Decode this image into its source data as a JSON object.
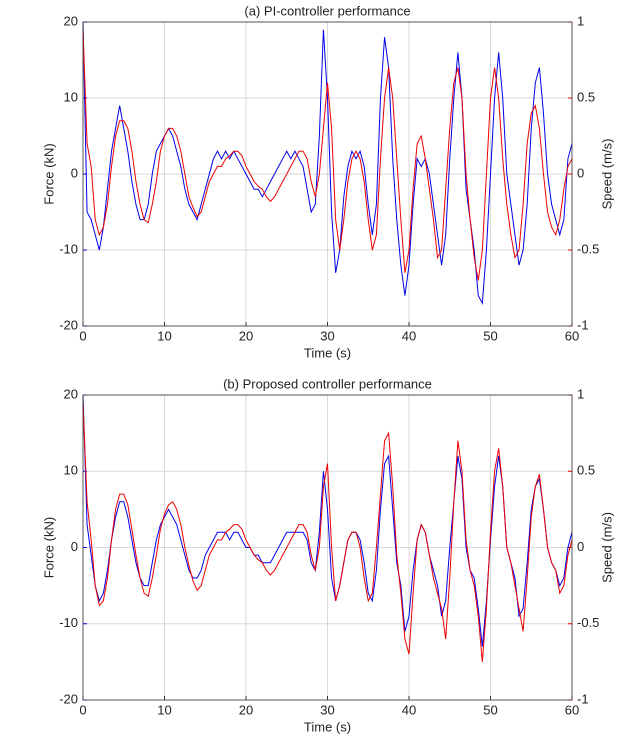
{
  "chart_data": [
    {
      "type": "line",
      "title": "(a) PI-controller performance",
      "xlabel": "Time (s)",
      "ylabel": "Force (kN)",
      "y2label": "Speed (m/s)",
      "xlim": [
        0,
        60
      ],
      "xticks": [
        0,
        10,
        20,
        30,
        40,
        50,
        60
      ],
      "ylim": [
        -20,
        20
      ],
      "yticks": [
        -20,
        -10,
        0,
        10,
        20
      ],
      "y2lim": [
        -1,
        1
      ],
      "y2ticks": [
        -1,
        -0.5,
        0,
        0.5,
        1
      ],
      "grid": true,
      "x": [
        0,
        0.5,
        1,
        1.5,
        2,
        2.5,
        3,
        3.5,
        4,
        4.5,
        5,
        5.5,
        6,
        6.5,
        7,
        7.5,
        8,
        8.5,
        9,
        9.5,
        10,
        10.5,
        11,
        11.5,
        12,
        12.5,
        13,
        13.5,
        14,
        14.5,
        15,
        15.5,
        16,
        16.5,
        17,
        17.5,
        18,
        18.5,
        19,
        19.5,
        20,
        20.5,
        21,
        21.5,
        22,
        22.5,
        23,
        23.5,
        24,
        24.5,
        25,
        25.5,
        26,
        26.5,
        27,
        27.5,
        28,
        28.5,
        29,
        29.5,
        30,
        30.5,
        31,
        31.5,
        32,
        32.5,
        33,
        33.5,
        34,
        34.5,
        35,
        35.5,
        36,
        36.5,
        37,
        37.5,
        38,
        38.5,
        39,
        39.5,
        40,
        40.5,
        41,
        41.5,
        42,
        42.5,
        43,
        43.5,
        44,
        44.5,
        45,
        45.5,
        46,
        46.5,
        47,
        47.5,
        48,
        48.5,
        49,
        49.5,
        50,
        50.5,
        51,
        51.5,
        52,
        52.5,
        53,
        53.5,
        54,
        54.5,
        55,
        55.5,
        56,
        56.5,
        57,
        57.5,
        58,
        58.5,
        59,
        59.5,
        60
      ],
      "series": [
        {
          "color": "#0000ee",
          "axis": "y",
          "values": [
            20,
            -5,
            -6,
            -8,
            -10,
            -7,
            -2,
            3,
            6,
            9,
            6,
            3,
            -1,
            -4,
            -6,
            -6,
            -4,
            0,
            3,
            4,
            5,
            6,
            5,
            3,
            1,
            -2,
            -4,
            -5,
            -6,
            -4,
            -2,
            0,
            2,
            3,
            2,
            3,
            2,
            3,
            2,
            1,
            0,
            -1,
            -2,
            -2,
            -3,
            -2,
            -1,
            0,
            1,
            2,
            3,
            2,
            3,
            2,
            1,
            -2,
            -5,
            -4,
            5,
            19,
            10,
            -5,
            -13,
            -10,
            -3,
            1,
            3,
            2,
            3,
            1,
            -4,
            -8,
            -4,
            10,
            18,
            14,
            2,
            -6,
            -12,
            -16,
            -12,
            -4,
            2,
            1,
            2,
            0,
            -4,
            -8,
            -12,
            -8,
            2,
            10,
            16,
            10,
            -2,
            -6,
            -10,
            -16,
            -17,
            -10,
            0,
            10,
            16,
            10,
            0,
            -4,
            -8,
            -12,
            -10,
            -4,
            6,
            12,
            14,
            8,
            0,
            -4,
            -6,
            -8,
            -6,
            2,
            4
          ]
        },
        {
          "color": "#ee0000",
          "axis": "y2",
          "values": [
            0.95,
            0.2,
            0.05,
            -0.3,
            -0.4,
            -0.35,
            -0.2,
            0.05,
            0.25,
            0.35,
            0.35,
            0.3,
            0.15,
            -0.05,
            -0.2,
            -0.3,
            -0.32,
            -0.2,
            -0.05,
            0.15,
            0.25,
            0.3,
            0.3,
            0.25,
            0.15,
            0,
            -0.15,
            -0.22,
            -0.28,
            -0.25,
            -0.15,
            -0.05,
            0,
            0.05,
            0.05,
            0.1,
            0.12,
            0.15,
            0.15,
            0.12,
            0.05,
            0,
            -0.05,
            -0.08,
            -0.1,
            -0.15,
            -0.18,
            -0.15,
            -0.1,
            -0.05,
            0,
            0.05,
            0.1,
            0.15,
            0.15,
            0.1,
            -0.05,
            -0.15,
            0,
            0.3,
            0.6,
            0.3,
            -0.3,
            -0.5,
            -0.3,
            -0.05,
            0.1,
            0.15,
            0.1,
            -0.05,
            -0.3,
            -0.5,
            -0.4,
            0.1,
            0.5,
            0.7,
            0.5,
            0.1,
            -0.3,
            -0.65,
            -0.5,
            -0.1,
            0.2,
            0.25,
            0.1,
            -0.1,
            -0.3,
            -0.55,
            -0.5,
            -0.1,
            0.3,
            0.6,
            0.7,
            0.5,
            0,
            -0.3,
            -0.55,
            -0.7,
            -0.5,
            0,
            0.5,
            0.7,
            0.5,
            0.1,
            -0.2,
            -0.4,
            -0.55,
            -0.5,
            -0.2,
            0.2,
            0.4,
            0.45,
            0.3,
            0,
            -0.25,
            -0.35,
            -0.4,
            -0.3,
            -0.1,
            0.05,
            0.1
          ]
        }
      ]
    },
    {
      "type": "line",
      "title": "(b) Proposed controller performance",
      "xlabel": "Time (s)",
      "ylabel": "Force (kN)",
      "y2label": "Speed (m/s)",
      "xlim": [
        0,
        60
      ],
      "xticks": [
        0,
        10,
        20,
        30,
        40,
        50,
        60
      ],
      "ylim": [
        -20,
        20
      ],
      "yticks": [
        -20,
        -10,
        0,
        10,
        20
      ],
      "y2lim": [
        -1,
        1
      ],
      "y2ticks": [
        -1,
        -0.5,
        0,
        0.5,
        1
      ],
      "grid": true,
      "x": [
        0,
        0.5,
        1,
        1.5,
        2,
        2.5,
        3,
        3.5,
        4,
        4.5,
        5,
        5.5,
        6,
        6.5,
        7,
        7.5,
        8,
        8.5,
        9,
        9.5,
        10,
        10.5,
        11,
        11.5,
        12,
        12.5,
        13,
        13.5,
        14,
        14.5,
        15,
        15.5,
        16,
        16.5,
        17,
        17.5,
        18,
        18.5,
        19,
        19.5,
        20,
        20.5,
        21,
        21.5,
        22,
        22.5,
        23,
        23.5,
        24,
        24.5,
        25,
        25.5,
        26,
        26.5,
        27,
        27.5,
        28,
        28.5,
        29,
        29.5,
        30,
        30.5,
        31,
        31.5,
        32,
        32.5,
        33,
        33.5,
        34,
        34.5,
        35,
        35.5,
        36,
        36.5,
        37,
        37.5,
        38,
        38.5,
        39,
        39.5,
        40,
        40.5,
        41,
        41.5,
        42,
        42.5,
        43,
        43.5,
        44,
        44.5,
        45,
        45.5,
        46,
        46.5,
        47,
        47.5,
        48,
        48.5,
        49,
        49.5,
        50,
        50.5,
        51,
        51.5,
        52,
        52.5,
        53,
        53.5,
        54,
        54.5,
        55,
        55.5,
        56,
        56.5,
        57,
        57.5,
        58,
        58.5,
        59,
        59.5,
        60
      ],
      "series": [
        {
          "color": "#0000ee",
          "axis": "y",
          "values": [
            20,
            3,
            -1,
            -5,
            -7,
            -6,
            -3,
            1,
            4,
            6,
            6,
            4,
            1,
            -2,
            -4,
            -5,
            -5,
            -2,
            1,
            3,
            4,
            5,
            4,
            3,
            1,
            -1,
            -3,
            -4,
            -4,
            -3,
            -1,
            0,
            1,
            2,
            2,
            2,
            1,
            2,
            2,
            1,
            0,
            0,
            -1,
            -1,
            -2,
            -2,
            -2,
            -1,
            0,
            1,
            2,
            2,
            2,
            2,
            2,
            1,
            -2,
            -3,
            2,
            10,
            5,
            -4,
            -7,
            -5,
            -2,
            1,
            2,
            2,
            1,
            -2,
            -6,
            -7,
            -3,
            5,
            11,
            12,
            5,
            -2,
            -5,
            -11,
            -9,
            -3,
            1,
            3,
            2,
            -1,
            -3,
            -5,
            -9,
            -7,
            0,
            6,
            12,
            9,
            0,
            -3,
            -4,
            -8,
            -13,
            -7,
            1,
            8,
            12,
            8,
            0,
            -2,
            -4,
            -9,
            -8,
            -2,
            5,
            8,
            9,
            5,
            0,
            -2,
            -3,
            -5,
            -4,
            0,
            2
          ]
        },
        {
          "color": "#ee0000",
          "axis": "y2",
          "values": [
            0.95,
            0.3,
            0.05,
            -0.25,
            -0.38,
            -0.35,
            -0.2,
            0.05,
            0.25,
            0.35,
            0.35,
            0.28,
            0.12,
            -0.05,
            -0.2,
            -0.3,
            -0.32,
            -0.2,
            -0.05,
            0.12,
            0.22,
            0.28,
            0.3,
            0.25,
            0.15,
            0,
            -0.12,
            -0.22,
            -0.28,
            -0.25,
            -0.15,
            -0.05,
            0,
            0.05,
            0.05,
            0.1,
            0.12,
            0.15,
            0.15,
            0.12,
            0.05,
            0,
            -0.05,
            -0.08,
            -0.1,
            -0.15,
            -0.18,
            -0.15,
            -0.1,
            -0.05,
            0,
            0.05,
            0.1,
            0.15,
            0.15,
            0.1,
            -0.05,
            -0.15,
            0,
            0.4,
            0.55,
            0,
            -0.35,
            -0.25,
            -0.1,
            0.05,
            0.1,
            0.1,
            0,
            -0.2,
            -0.35,
            -0.3,
            0,
            0.35,
            0.7,
            0.75,
            0.4,
            -0.05,
            -0.3,
            -0.6,
            -0.7,
            -0.3,
            0.05,
            0.15,
            0.1,
            -0.05,
            -0.2,
            -0.3,
            -0.4,
            -0.6,
            -0.2,
            0.3,
            0.7,
            0.5,
            0.05,
            -0.15,
            -0.25,
            -0.45,
            -0.75,
            -0.4,
            0.1,
            0.5,
            0.65,
            0.4,
            0,
            -0.1,
            -0.25,
            -0.4,
            -0.55,
            -0.2,
            0.2,
            0.4,
            0.48,
            0.25,
            0,
            -0.1,
            -0.15,
            -0.3,
            -0.25,
            -0.05,
            0.05
          ]
        }
      ]
    }
  ]
}
